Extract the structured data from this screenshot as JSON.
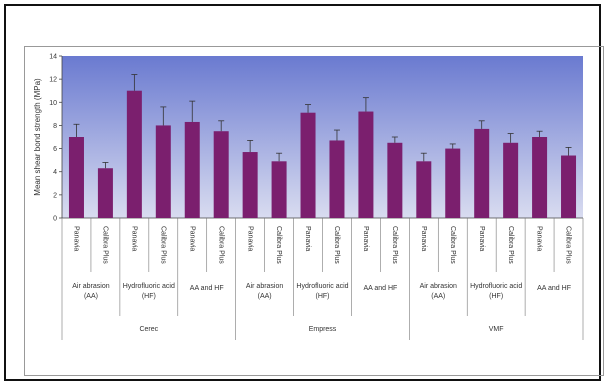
{
  "chart_data": {
    "type": "bar",
    "ylabel": "Mean shear bond strength (MPa)",
    "ylim": [
      0,
      14
    ],
    "yticks": [
      0,
      2,
      4,
      6,
      8,
      10,
      12,
      14
    ],
    "grid": false,
    "bar_color": "#7b1f6e",
    "background_gradient": [
      "#6a7ad0",
      "#d9dcf0"
    ],
    "materials": [
      "Cerec",
      "Empress",
      "VMF"
    ],
    "treatments": [
      "Air abrasion (AA)",
      "Hydrofluoric acid (HF)",
      "AA and HF"
    ],
    "cements": [
      "Panavia",
      "Calibra Plus"
    ],
    "bars": [
      {
        "material": "Cerec",
        "treatment": "Air abrasion (AA)",
        "cement": "Panavia",
        "value": 7.0,
        "error": 1.1
      },
      {
        "material": "Cerec",
        "treatment": "Air abrasion (AA)",
        "cement": "Calibra Plus",
        "value": 4.3,
        "error": 0.5
      },
      {
        "material": "Cerec",
        "treatment": "Hydrofluoric acid (HF)",
        "cement": "Panavia",
        "value": 11.0,
        "error": 1.4
      },
      {
        "material": "Cerec",
        "treatment": "Hydrofluoric acid (HF)",
        "cement": "Calibra Plus",
        "value": 8.0,
        "error": 1.6
      },
      {
        "material": "Cerec",
        "treatment": "AA and HF",
        "cement": "Panavia",
        "value": 8.3,
        "error": 1.8
      },
      {
        "material": "Cerec",
        "treatment": "AA and HF",
        "cement": "Calibra Plus",
        "value": 7.5,
        "error": 0.9
      },
      {
        "material": "Empress",
        "treatment": "Air abrasion (AA)",
        "cement": "Panavia",
        "value": 5.7,
        "error": 1.0
      },
      {
        "material": "Empress",
        "treatment": "Air abrasion (AA)",
        "cement": "Calibra Plus",
        "value": 4.9,
        "error": 0.7
      },
      {
        "material": "Empress",
        "treatment": "Hydrofluoric acid (HF)",
        "cement": "Panavia",
        "value": 9.1,
        "error": 0.7
      },
      {
        "material": "Empress",
        "treatment": "Hydrofluoric acid (HF)",
        "cement": "Calibra Plus",
        "value": 6.7,
        "error": 0.9
      },
      {
        "material": "Empress",
        "treatment": "AA and HF",
        "cement": "Panavia",
        "value": 9.2,
        "error": 1.2
      },
      {
        "material": "Empress",
        "treatment": "AA and HF",
        "cement": "Calibra Plus",
        "value": 6.5,
        "error": 0.5
      },
      {
        "material": "VMF",
        "treatment": "Air abrasion (AA)",
        "cement": "Panavia",
        "value": 4.9,
        "error": 0.7
      },
      {
        "material": "VMF",
        "treatment": "Air abrasion (AA)",
        "cement": "Calibra Plus",
        "value": 6.0,
        "error": 0.4
      },
      {
        "material": "VMF",
        "treatment": "Hydrofluoric acid (HF)",
        "cement": "Panavia",
        "value": 7.7,
        "error": 0.7
      },
      {
        "material": "VMF",
        "treatment": "Hydrofluoric acid (HF)",
        "cement": "Calibra Plus",
        "value": 6.5,
        "error": 0.8
      },
      {
        "material": "VMF",
        "treatment": "AA and HF",
        "cement": "Panavia",
        "value": 7.0,
        "error": 0.5
      },
      {
        "material": "VMF",
        "treatment": "AA and HF",
        "cement": "Calibra Plus",
        "value": 5.4,
        "error": 0.7
      }
    ]
  }
}
